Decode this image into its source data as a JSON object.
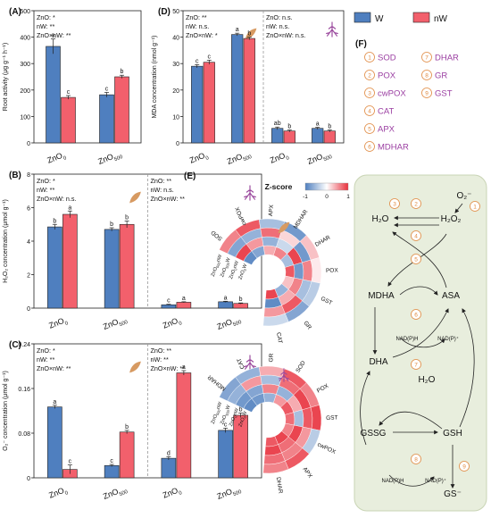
{
  "colors": {
    "W": "#4f7fbf",
    "nW": "#f2606c",
    "leaf": "#d79a62",
    "root": "#9b4a9e",
    "pathway_bg": "#e8eedd",
    "pathway_border": "#c9d4b5",
    "enzyme_num": "#e08a42",
    "enzyme_text": "#9b3fa2"
  },
  "legend": {
    "W": "W",
    "nW": "nW"
  },
  "chart_data": [
    {
      "panel": "(A)",
      "type": "bar",
      "ylabel": "Root activity (μg g⁻¹ h⁻¹)",
      "ylim": [
        0,
        500
      ],
      "yticks": [
        0,
        100,
        200,
        300,
        400,
        500
      ],
      "stats": [
        "ZnO: *",
        "nW: **",
        "ZnO×nW: **"
      ],
      "groups": [
        {
          "label": "ZnO",
          "sub": "0",
          "W": 365,
          "W_err": 28,
          "W_sig": "a",
          "nW": 172,
          "nW_err": 7,
          "nW_sig": "c"
        },
        {
          "label": "ZnO",
          "sub": "500",
          "W": 182,
          "W_err": 9,
          "W_sig": "c",
          "nW": 250,
          "nW_err": 6,
          "nW_sig": "b"
        }
      ]
    },
    {
      "panel": "(B)",
      "type": "bar",
      "ylabel": "H₂O₂ concentration (μmol g⁻¹)",
      "ylim": [
        0,
        8
      ],
      "yticks": [
        0,
        2,
        4,
        6,
        8
      ],
      "stats_leaf": [
        "ZnO: *",
        "nW: **",
        "ZnO×nW: n.s."
      ],
      "stats_root": [
        "ZnO: **",
        "nW: n.s.",
        "ZnO×nW: **"
      ],
      "groups": [
        {
          "label": "ZnO",
          "sub": "0",
          "tissue": "leaf",
          "W": 4.85,
          "W_err": 0.15,
          "W_sig": "b",
          "nW": 5.6,
          "nW_err": 0.2,
          "nW_sig": "a"
        },
        {
          "label": "ZnO",
          "sub": "500",
          "tissue": "leaf",
          "W": 4.7,
          "W_err": 0.1,
          "W_sig": "b",
          "nW": 5.0,
          "nW_err": 0.2,
          "nW_sig": "b"
        },
        {
          "label": "ZnO",
          "sub": "0",
          "tissue": "root",
          "W": 0.2,
          "W_err": 0.03,
          "W_sig": "c",
          "nW": 0.35,
          "nW_err": 0.03,
          "nW_sig": "a"
        },
        {
          "label": "ZnO",
          "sub": "500",
          "tissue": "root",
          "W": 0.38,
          "W_err": 0.03,
          "W_sig": "a",
          "nW": 0.28,
          "nW_err": 0.03,
          "nW_sig": "b"
        }
      ]
    },
    {
      "panel": "(C)",
      "type": "bar",
      "ylabel": "O₂⁻ concentration (μmol g⁻¹)",
      "ylim": [
        0,
        0.24
      ],
      "yticks": [
        0.0,
        0.08,
        0.16,
        0.24
      ],
      "ytick_labels": [
        "0",
        "0.08",
        "0.16",
        "0.24"
      ],
      "stats_leaf": [
        "ZnO: *",
        "nW: **",
        "ZnO×nW: **"
      ],
      "stats_root": [
        "ZnO: **",
        "nW: **",
        "ZnO×nW: **"
      ],
      "groups": [
        {
          "label": "ZnO",
          "sub": "0",
          "tissue": "leaf",
          "W": 0.127,
          "W_err": 0.003,
          "W_sig": "a",
          "nW": 0.015,
          "nW_err": 0.008,
          "nW_sig": "c"
        },
        {
          "label": "ZnO",
          "sub": "500",
          "tissue": "leaf",
          "W": 0.022,
          "W_err": 0.002,
          "W_sig": "c",
          "nW": 0.082,
          "nW_err": 0.003,
          "nW_sig": "b"
        },
        {
          "label": "ZnO",
          "sub": "0",
          "tissue": "root",
          "W": 0.035,
          "W_err": 0.003,
          "W_sig": "d",
          "nW": 0.188,
          "nW_err": 0.004,
          "nW_sig": "a"
        },
        {
          "label": "ZnO",
          "sub": "500",
          "tissue": "root",
          "W": 0.085,
          "W_err": 0.004,
          "W_sig": "c",
          "nW": 0.112,
          "nW_err": 0.004,
          "nW_sig": "b"
        }
      ]
    },
    {
      "panel": "(D)",
      "type": "bar",
      "ylabel": "MDA concentration (nmol g⁻¹)",
      "ylim": [
        0,
        50
      ],
      "yticks": [
        0,
        10,
        20,
        30,
        40,
        50
      ],
      "stats_leaf": [
        "ZnO: **",
        "nW: n.s.",
        "ZnO×nW: *"
      ],
      "stats_root": [
        "ZnO: n.s.",
        "nW: n.s.",
        "ZnO×nW: n.s."
      ],
      "groups": [
        {
          "label": "ZnO",
          "sub": "0",
          "tissue": "leaf",
          "W": 29,
          "W_err": 0.6,
          "W_sig": "c",
          "nW": 30.5,
          "nW_err": 0.8,
          "nW_sig": "c"
        },
        {
          "label": "ZnO",
          "sub": "500",
          "tissue": "leaf",
          "W": 41,
          "W_err": 0.5,
          "W_sig": "a",
          "nW": 39.5,
          "nW_err": 0.5,
          "nW_sig": "b"
        },
        {
          "label": "ZnO",
          "sub": "0",
          "tissue": "root",
          "W": 5.5,
          "W_err": 0.5,
          "W_sig": "ab",
          "nW": 4.5,
          "nW_err": 0.4,
          "nW_sig": "b"
        },
        {
          "label": "ZnO",
          "sub": "500",
          "tissue": "root",
          "W": 5.5,
          "W_err": 0.4,
          "W_sig": "a",
          "nW": 4.5,
          "nW_err": 0.4,
          "nW_sig": "b"
        }
      ]
    },
    {
      "panel": "(E)",
      "type": "heatmap",
      "title": "Z-score",
      "scale": [
        -1,
        0,
        1
      ],
      "colormap": [
        "#4f7fbf",
        "#ffffff",
        "#e8303c"
      ],
      "columns": [
        "ZnO0W",
        "ZnO0nW",
        "ZnO500W",
        "ZnO500nW"
      ],
      "column_labels": [
        {
          "base": "ZnO",
          "sub": "0",
          "suf": "W"
        },
        {
          "base": "ZnO",
          "sub": "0",
          "suf": "nW"
        },
        {
          "base": "ZnO",
          "sub": "500",
          "suf": "W"
        },
        {
          "base": "ZnO",
          "sub": "500",
          "suf": "nW"
        }
      ],
      "leaf": {
        "rows": [
          "SOD",
          "cwPOX",
          "APX",
          "MDHAR",
          "DHAR",
          "POX",
          "GST",
          "GR",
          "CAT"
        ],
        "values": [
          [
            -0.9,
            0.9,
            -0.7,
            0.6
          ],
          [
            -0.7,
            0.5,
            -0.6,
            0.8
          ],
          [
            0.4,
            -0.6,
            0.7,
            -0.5
          ],
          [
            0.6,
            -0.3,
            0.2,
            -0.8
          ],
          [
            -0.5,
            0.9,
            -0.8,
            0.3
          ],
          [
            0.8,
            -0.8,
            0.6,
            0.1
          ],
          [
            0.3,
            0.6,
            -0.5,
            -0.4
          ],
          [
            -0.6,
            0.4,
            0.8,
            -0.7
          ],
          [
            0.9,
            -0.9,
            0.5,
            -0.3
          ]
        ]
      },
      "root": {
        "rows": [
          "MDHAR",
          "CAT",
          "GR",
          "SOD",
          "POX",
          "GST",
          "cwPOX",
          "APX",
          "DHAR"
        ],
        "values": [
          [
            -0.9,
            -0.8,
            -0.6,
            -0.7
          ],
          [
            -0.8,
            -0.7,
            0.5,
            -0.6
          ],
          [
            -0.6,
            0.6,
            -0.5,
            0.4
          ],
          [
            0.5,
            -0.6,
            0.7,
            0.8
          ],
          [
            0.8,
            0.4,
            0.9,
            0.6
          ],
          [
            0.7,
            -0.5,
            0.8,
            0.9
          ],
          [
            0.6,
            0.9,
            0.5,
            -0.4
          ],
          [
            0.9,
            0.7,
            0.6,
            0.8
          ],
          [
            0.8,
            0.9,
            0.7,
            0.6
          ]
        ]
      }
    }
  ],
  "panel_f": {
    "label": "(F)",
    "enzymes": [
      {
        "num": "1",
        "name": "SOD"
      },
      {
        "num": "2",
        "name": "POX"
      },
      {
        "num": "3",
        "name": "cwPOX"
      },
      {
        "num": "4",
        "name": "CAT"
      },
      {
        "num": "5",
        "name": "APX"
      },
      {
        "num": "6",
        "name": "MDHAR"
      },
      {
        "num": "7",
        "name": "DHAR"
      },
      {
        "num": "8",
        "name": "GR"
      },
      {
        "num": "9",
        "name": "GST"
      }
    ],
    "nodes": {
      "o2": "O₂⁻",
      "h2o": "H₂O",
      "h2o2": "H₂O₂",
      "mdha": "MDHA",
      "asa": "ASA",
      "dha": "DHA",
      "h2o_b": "H₂O",
      "gssg": "GSSG",
      "gsh": "GSH",
      "gs": "GS⁻",
      "nadph1": "NAD(P)H",
      "nadp1": "NAD(P)⁺",
      "nadph2": "NAD(P)H",
      "nadp2": "NAD(P)⁺"
    }
  }
}
